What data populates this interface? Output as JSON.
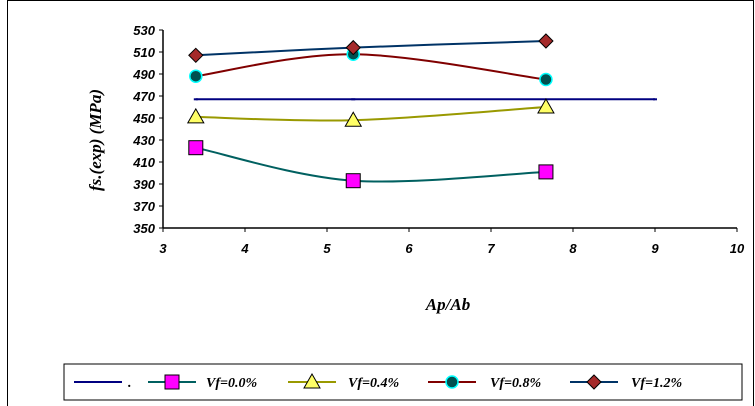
{
  "chart_data": {
    "type": "line",
    "xlabel": "Ap/Ab",
    "ylabel": "fs.(exp) (MPa)",
    "xlim": [
      3,
      10
    ],
    "ylim": [
      350,
      530
    ],
    "xticks": [
      3,
      4,
      5,
      6,
      7,
      8,
      9,
      10
    ],
    "yticks": [
      350,
      370,
      390,
      410,
      430,
      450,
      470,
      490,
      510,
      530
    ],
    "grid": false,
    "legend_position": "bottom",
    "series": [
      {
        "name": ".",
        "color": "#000080",
        "marker": "dash",
        "marker_color": "#000080",
        "x": [
          3.4,
          5.32,
          9.0
        ],
        "y": [
          467,
          467,
          467
        ],
        "smooth": false
      },
      {
        "name": "Vf=0.0%",
        "color": "#006060",
        "marker": "square",
        "marker_color": "#FF00FF",
        "x": [
          3.4,
          5.32,
          7.67
        ],
        "y": [
          423,
          393,
          401
        ],
        "smooth": true
      },
      {
        "name": "Vf=0.4%",
        "color": "#999900",
        "marker": "triangle",
        "marker_color": "#FFFF66",
        "x": [
          3.4,
          5.32,
          7.67
        ],
        "y": [
          451,
          448,
          460
        ],
        "smooth": true
      },
      {
        "name": "Vf=0.8%",
        "color": "#800000",
        "marker": "circle",
        "marker_color": "#005050",
        "x": [
          3.4,
          5.32,
          7.67
        ],
        "y": [
          488,
          508,
          485
        ],
        "smooth": true
      },
      {
        "name": "Vf=1.2%",
        "color": "#003366",
        "marker": "diamond",
        "marker_color": "#A52A2A",
        "x": [
          3.4,
          5.32,
          7.67
        ],
        "y": [
          507,
          514,
          520
        ],
        "smooth": true
      }
    ]
  }
}
